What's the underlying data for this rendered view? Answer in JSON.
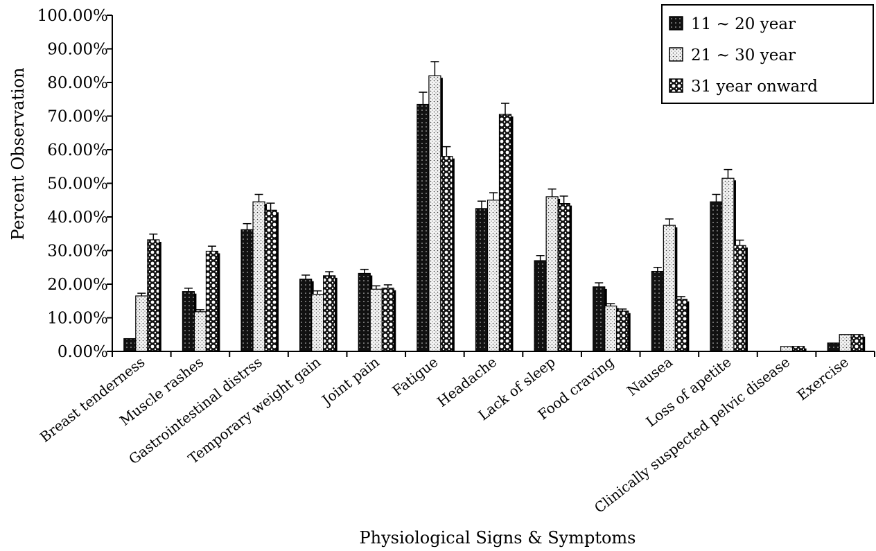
{
  "chart_data": {
    "type": "bar",
    "xlabel": "Physiological Signs & Symptoms",
    "ylabel": "Percent Observation",
    "ylim": [
      0,
      100
    ],
    "yticks": [
      "0.00%",
      "10.00%",
      "20.00%",
      "30.00%",
      "40.00%",
      "50.00%",
      "60.00%",
      "70.00%",
      "80.00%",
      "90.00%",
      "100.00%"
    ],
    "grid": false,
    "legend_position": "top-right",
    "error_bars": true,
    "categories": [
      "Breast tenderness",
      "Muscle rashes",
      "Gastrointestinal distrss",
      "Temporary weight gain",
      "Joint pain",
      "Fatigue",
      "Headache",
      "Lack of sleep",
      "Food craving",
      "Nausea",
      "Loss of apetite",
      "Clinically suspected pelvic disease",
      "Exercise"
    ],
    "series": [
      {
        "name": "11 ~ 20 year",
        "pattern": "solid-dark",
        "values": [
          3.8,
          17.8,
          36.2,
          21.5,
          23.2,
          73.5,
          42.5,
          27.0,
          19.2,
          23.8,
          44.5,
          0.0,
          2.5
        ],
        "errors": [
          0.0,
          1.0,
          1.8,
          1.2,
          1.2,
          3.6,
          2.2,
          1.5,
          1.2,
          1.2,
          2.2,
          0.0,
          0.0
        ]
      },
      {
        "name": "21 ~ 30 year",
        "pattern": "dotted-light",
        "values": [
          16.5,
          11.8,
          44.5,
          17.0,
          18.5,
          82.0,
          45.0,
          46.0,
          13.5,
          37.5,
          51.5,
          1.5,
          5.0
        ],
        "errors": [
          0.8,
          0.6,
          2.2,
          1.0,
          1.0,
          4.2,
          2.2,
          2.3,
          0.7,
          1.9,
          2.6,
          0.0,
          0.0
        ]
      },
      {
        "name": "31 year onward",
        "pattern": "checker",
        "values": [
          33.2,
          29.8,
          42.0,
          22.5,
          18.8,
          58.0,
          70.5,
          44.0,
          12.0,
          15.5,
          31.5,
          1.5,
          5.0
        ],
        "errors": [
          1.7,
          1.5,
          2.1,
          1.2,
          1.0,
          2.9,
          3.3,
          2.2,
          0.6,
          0.8,
          1.6,
          0.0,
          0.0
        ]
      }
    ]
  }
}
